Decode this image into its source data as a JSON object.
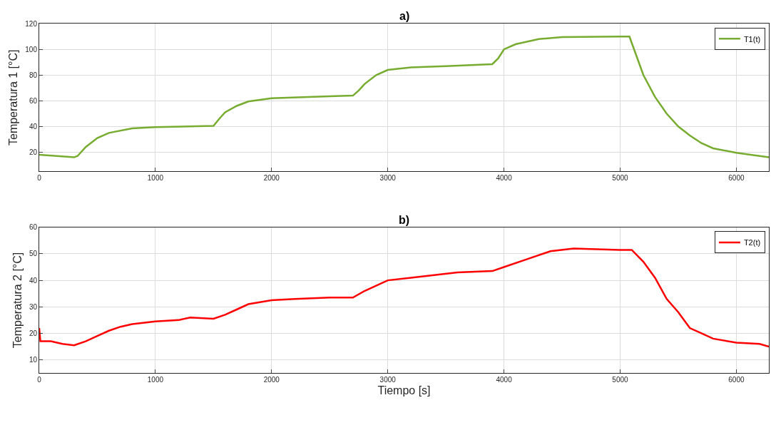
{
  "chart_data": [
    {
      "type": "line",
      "title": "a)",
      "ylabel": "Temperatura 1 [°C]",
      "xlim": [
        0,
        6280
      ],
      "xticks": [
        0,
        1000,
        2000,
        3000,
        4000,
        5000,
        6000
      ],
      "ylim": [
        5,
        120
      ],
      "yticks": [
        20,
        40,
        60,
        80,
        100,
        120
      ],
      "grid": true,
      "legend": "top right",
      "series": [
        {
          "name": "T1(t)",
          "color": "#77ac30",
          "x": [
            0,
            300,
            330,
            400,
            500,
            600,
            800,
            1000,
            1500,
            1550,
            1600,
            1700,
            1800,
            2000,
            2500,
            2700,
            2750,
            2800,
            2900,
            3000,
            3200,
            3500,
            3900,
            3950,
            4000,
            4100,
            4300,
            4500,
            5000,
            5080,
            5120,
            5200,
            5300,
            5400,
            5500,
            5600,
            5700,
            5800,
            6000,
            6200,
            6280
          ],
          "values": [
            18,
            16,
            17,
            24,
            31,
            35,
            38.5,
            39.5,
            40.5,
            46,
            51,
            56,
            59.5,
            62,
            63.5,
            64,
            68,
            73,
            80,
            84,
            86,
            87,
            88.5,
            93,
            100,
            104,
            108,
            109.5,
            110,
            110,
            100,
            80,
            63,
            50,
            40,
            33,
            27,
            23,
            19.5,
            17,
            16
          ]
        }
      ]
    },
    {
      "type": "line",
      "title": "b)",
      "xlabel": "Tiempo [s]",
      "ylabel": "Temperatura 2 [°C]",
      "xlim": [
        0,
        6280
      ],
      "xticks": [
        0,
        1000,
        2000,
        3000,
        4000,
        5000,
        6000
      ],
      "ylim": [
        5,
        60
      ],
      "yticks": [
        10,
        20,
        30,
        40,
        50,
        60
      ],
      "grid": true,
      "legend": "top right",
      "series": [
        {
          "name": "T2(t)",
          "color": "#ff0000",
          "x": [
            0,
            10,
            100,
            200,
            300,
            400,
            500,
            600,
            700,
            800,
            1000,
            1200,
            1300,
            1500,
            1600,
            1700,
            1800,
            2000,
            2200,
            2500,
            2700,
            2800,
            2900,
            3000,
            3200,
            3400,
            3600,
            3900,
            4000,
            4200,
            4400,
            4600,
            5000,
            5100,
            5200,
            5300,
            5400,
            5500,
            5600,
            5700,
            5800,
            6000,
            6200,
            6280
          ],
          "values": [
            22,
            17,
            17,
            16,
            15.5,
            17,
            19,
            21,
            22.5,
            23.5,
            24.5,
            25,
            26,
            25.5,
            27,
            29,
            31,
            32.5,
            33,
            33.5,
            33.5,
            36,
            38,
            40,
            41,
            42,
            43,
            43.5,
            45,
            48,
            51,
            52,
            51.5,
            51.5,
            47,
            41,
            33,
            28,
            22,
            20,
            18,
            16.5,
            16,
            15
          ]
        }
      ]
    }
  ]
}
